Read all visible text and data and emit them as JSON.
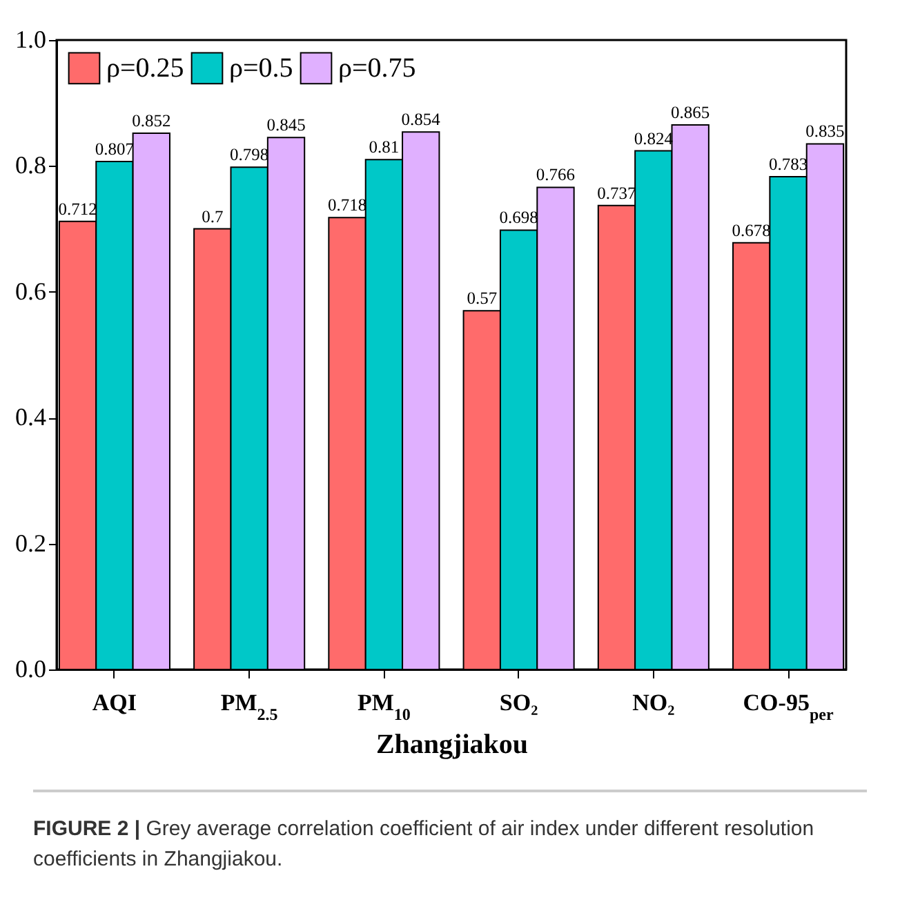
{
  "chart_data": {
    "type": "bar",
    "xlabel": "Zhangjiakou",
    "categories": [
      "AQI",
      "PM$_{2.5}$",
      "PM$_{10}$",
      "SO₂",
      "NO₂",
      "CO-95$_{per}$"
    ],
    "series": [
      {
        "name": "ρ=0.25",
        "color": "#ff6b6b",
        "values": [
          0.712,
          0.7,
          0.718,
          0.57,
          0.737,
          0.678
        ]
      },
      {
        "name": "ρ=0.5",
        "color": "#00c8c8",
        "values": [
          0.807,
          0.798,
          0.81,
          0.698,
          0.824,
          0.783
        ]
      },
      {
        "name": "ρ=0.75",
        "color": "#e0b0ff",
        "values": [
          0.852,
          0.845,
          0.854,
          0.766,
          0.865,
          0.835
        ]
      }
    ],
    "ylim": [
      0,
      1
    ],
    "yticks": [
      {
        "value": 0,
        "label": "0.0"
      },
      0.2,
      0.4,
      0.6,
      0.8,
      {
        "value": 1,
        "label": "1.0"
      }
    ],
    "grid": false,
    "legend": "top left",
    "data_labels": true,
    "annotations": [
      "FIGURE 2 | Grey average correlation coefficient of air index under different resolution coefficients in Zhangjiakou."
    ]
  }
}
